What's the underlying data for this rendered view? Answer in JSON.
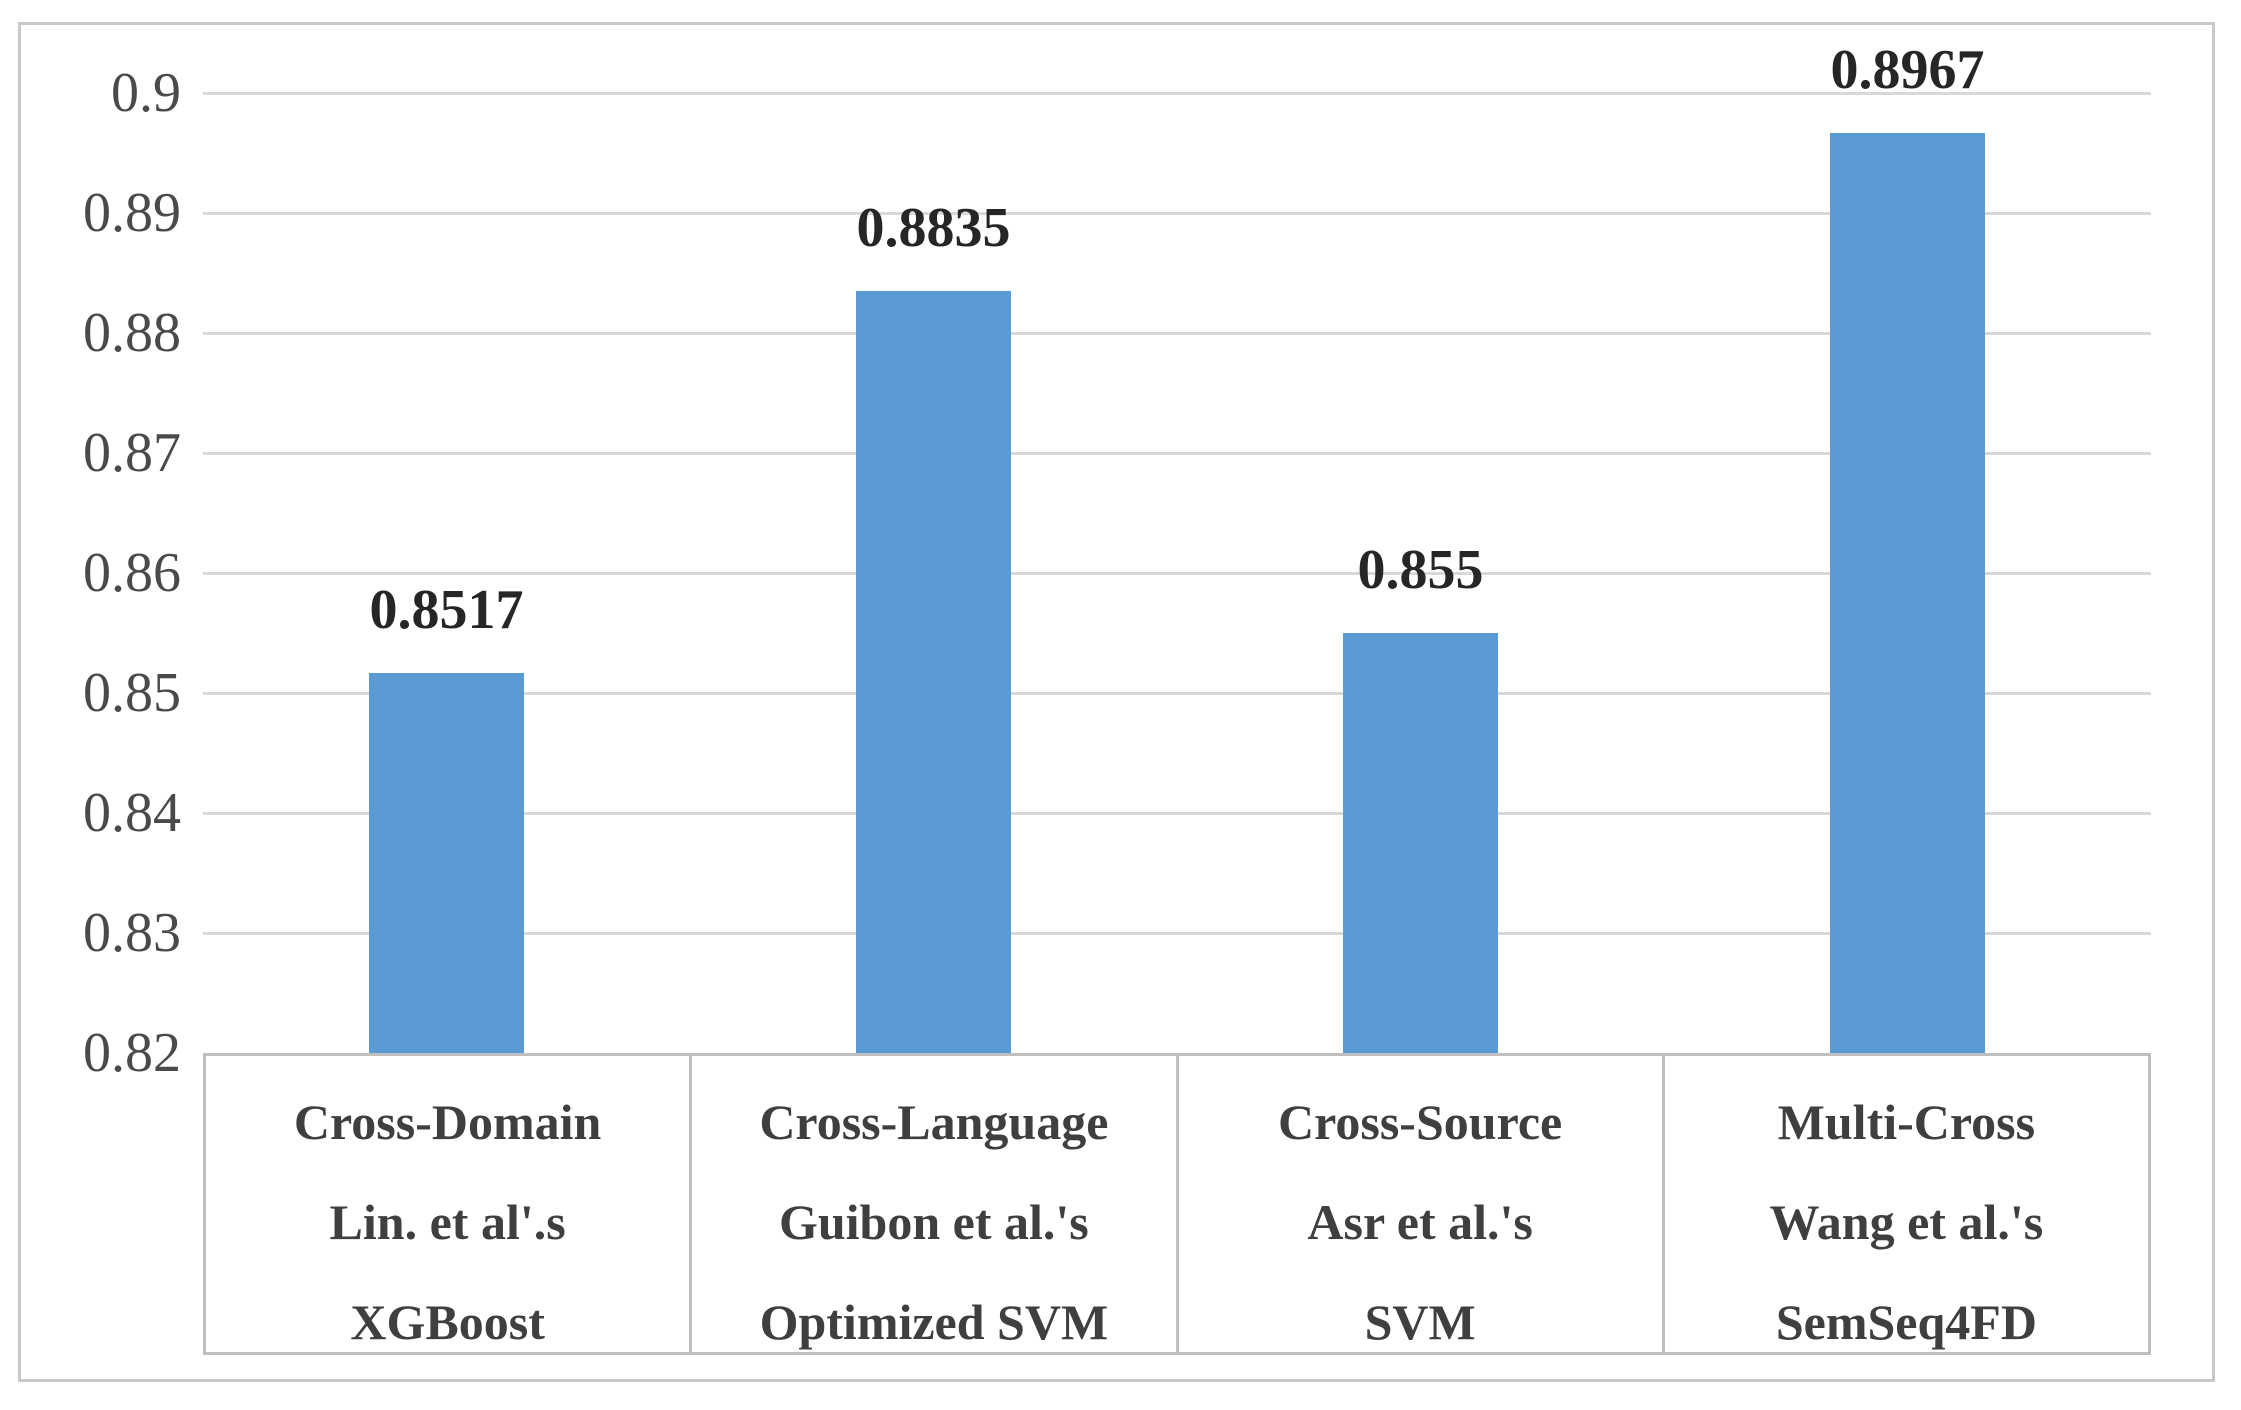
{
  "chart_data": {
    "type": "bar",
    "categories": [
      [
        "Cross-Domain",
        "Lin. et al'.s",
        "XGBoost"
      ],
      [
        "Cross-Language",
        "Guibon et al.'s",
        "Optimized SVM"
      ],
      [
        "Cross-Source",
        "Asr et al.'s",
        "SVM"
      ],
      [
        "Multi-Cross",
        "Wang et al.'s",
        "SemSeq4FD"
      ]
    ],
    "values": [
      0.8517,
      0.8835,
      0.855,
      0.8967
    ],
    "data_labels": [
      "0.8517",
      "0.8835",
      "0.855",
      "0.8967"
    ],
    "y_ticks": [
      "0.9",
      "0.89",
      "0.88",
      "0.87",
      "0.86",
      "0.85",
      "0.84",
      "0.83",
      "0.82"
    ],
    "ylim": [
      0.82,
      0.9
    ],
    "grid": "horizontal",
    "legend_position": "none",
    "colors": {
      "bar": "#5b9bd5",
      "gridline": "#d9d9d9",
      "tick_text": "#4a4a4a",
      "data_label_text": "#262626",
      "category_text": "#3f3f3f",
      "figure_border": "#c9c9c9",
      "category_border": "#bfbfbf",
      "background": "#ffffff"
    }
  }
}
